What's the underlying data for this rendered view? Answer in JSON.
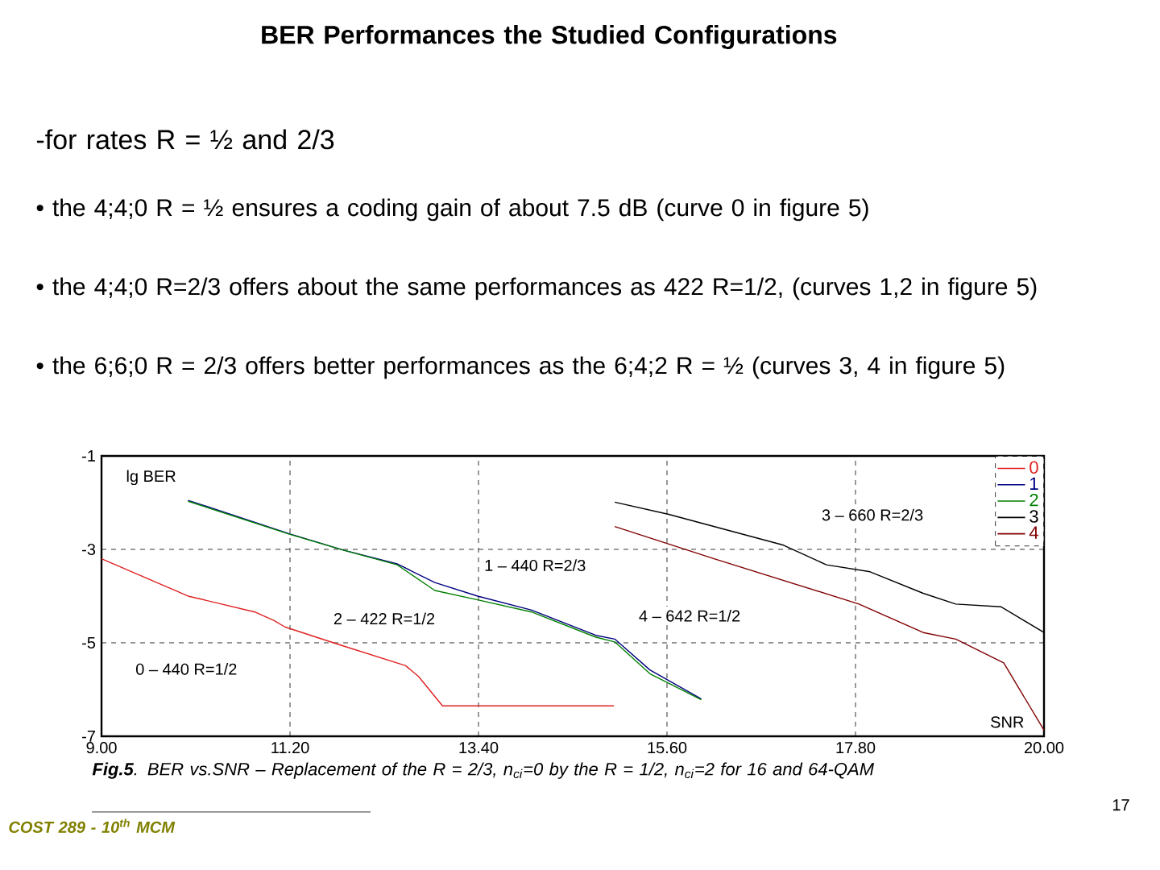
{
  "chart_data": {
    "type": "line",
    "title": "BER Performances the Studied Configurations",
    "xlabel": "SNR",
    "ylabel": "lg BER",
    "xlim": [
      9,
      20
    ],
    "ylim": [
      -7,
      -1
    ],
    "xticks": [
      {
        "value": 9,
        "label": "9.00"
      },
      {
        "value": 11.2,
        "label": "11.20"
      },
      {
        "value": 13.4,
        "label": "13.40"
      },
      {
        "value": 15.6,
        "label": "15.60"
      },
      {
        "value": 17.8,
        "label": "17.80"
      },
      {
        "value": 20,
        "label": "20.00"
      }
    ],
    "yticks": [
      -1,
      -3,
      -5,
      -7
    ],
    "grid": true,
    "legend": "top right",
    "marker": "none",
    "line_style": "solid",
    "series": [
      {
        "name": "0",
        "color": "#e02020",
        "x": [
          9.0,
          10.01,
          10.79,
          11.01,
          11.14,
          11.76,
          12.55,
          12.7,
          12.98,
          14.98
        ],
        "values": [
          -3.2,
          -4.0,
          -4.34,
          -4.52,
          -4.66,
          -5.03,
          -5.49,
          -5.72,
          -6.35,
          -6.35
        ]
      },
      {
        "name": "1",
        "color": "#000080",
        "x": [
          10.01,
          11.2,
          11.83,
          12.45,
          12.89,
          13.39,
          14.02,
          14.77,
          14.99,
          15.4,
          16.0
        ],
        "values": [
          -1.95,
          -2.67,
          -3.02,
          -3.31,
          -3.71,
          -4.0,
          -4.3,
          -4.84,
          -4.92,
          -5.58,
          -6.2
        ]
      },
      {
        "name": "2",
        "color": "#008000",
        "x": [
          10.01,
          11.2,
          11.83,
          12.45,
          12.89,
          13.39,
          14.02,
          14.77,
          14.99,
          15.4,
          16.0
        ],
        "values": [
          -1.97,
          -2.68,
          -3.02,
          -3.33,
          -3.88,
          -4.08,
          -4.34,
          -4.88,
          -4.98,
          -5.66,
          -6.22
        ]
      },
      {
        "name": "3",
        "color": "#000000",
        "x": [
          14.99,
          15.62,
          16.96,
          17.46,
          17.97,
          18.59,
          18.97,
          19.5,
          20.0
        ],
        "values": [
          -1.99,
          -2.25,
          -2.91,
          -3.33,
          -3.48,
          -3.94,
          -4.17,
          -4.23,
          -4.78
        ]
      },
      {
        "name": "4",
        "color": "#800000",
        "x": [
          14.99,
          16.15,
          17.84,
          18.59,
          18.97,
          19.53,
          20.0
        ],
        "values": [
          -2.51,
          -3.2,
          -4.17,
          -4.78,
          -4.92,
          -5.43,
          -6.87
        ]
      }
    ],
    "annotations": [
      "-for rates R = ½ and 2/3",
      "• the 4;4;0 R = ½ ensures a coding gain of about 7.5 dB (curve 0 in figure 5)",
      "• the 4;4;0 R=2/3 offers about the same performances as 422 R=1/2, (curves 1,2 in figure 5)",
      "• the 6;6;0 R = 2/3 offers better performances as the 6;4;2  R = ½ (curves 3, 4 in figure 5)",
      "**Fig.5**. BER vs.SNR – Replacement of the R = 2/3, n$_{ci}$=0 by the R = 1/2, n$_{ci}$=2 for 16 and 64-QAM",
      "COST 289 - 10$^{th}$ MCM",
      "17",
      "0 – 440 R=1/2",
      "1 – 440 R=2/3",
      "2 – 422 R=1/2",
      "3 – 660 R=2/3",
      "4 – 642 R=1/2"
    ]
  }
}
